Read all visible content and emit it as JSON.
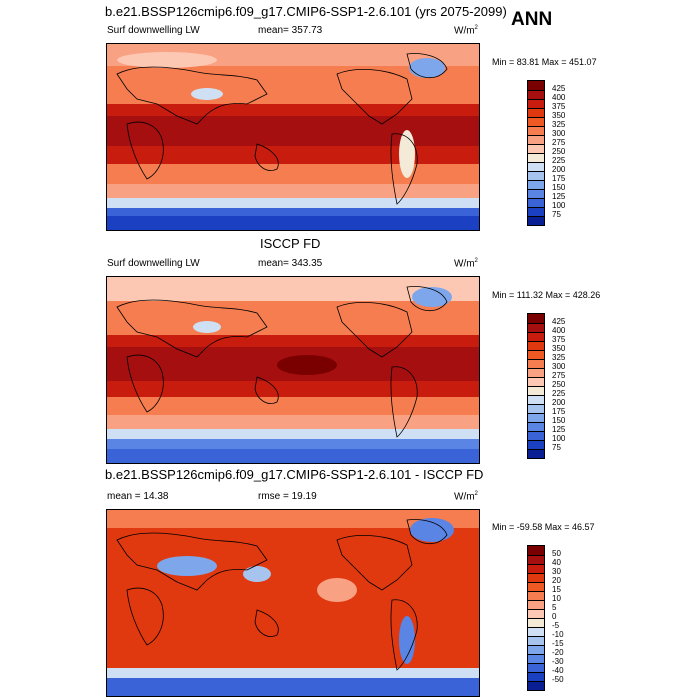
{
  "header": {
    "title_top": "b.e21.BSSP126cmip6.f09_g17.CMIP6-SSP1-2.6.101 (yrs 2075-2099)",
    "season": "ANN",
    "title_mid": "ISCCP FD",
    "title_bottom": "b.e21.BSSP126cmip6.f09_g17.CMIP6-SSP1-2.6.101 - ISCCP FD"
  },
  "panels": [
    {
      "left_label": "Surf downwelling LW",
      "center_label": "mean= 357.73",
      "unit": "W/m",
      "unit_sup": "2",
      "minmax": "Min =  83.81 Max = 451.07"
    },
    {
      "left_label": "Surf downwelling LW",
      "center_label": "mean= 343.35",
      "unit": "W/m",
      "unit_sup": "2",
      "minmax": "Min = 111.32 Max = 428.26"
    },
    {
      "left_label": "mean =  14.38",
      "center_label": "rmse =  19.19",
      "unit": "W/m",
      "unit_sup": "2",
      "minmax": "Min = -59.58 Max =  46.57"
    }
  ],
  "colorbars": {
    "absolute": {
      "labels": [
        "425",
        "400",
        "375",
        "350",
        "325",
        "300",
        "275",
        "250",
        "225",
        "200",
        "175",
        "150",
        "125",
        "100",
        "75"
      ],
      "colors": [
        "#7a0000",
        "#a50f0f",
        "#c81d0e",
        "#e0380f",
        "#ef5a24",
        "#f57d4f",
        "#f9a283",
        "#fcc7b3",
        "#f3ead8",
        "#cfe0f4",
        "#a6c4ee",
        "#7ea6ea",
        "#5a85e4",
        "#3a63d8",
        "#1c40c2",
        "#0a1f93"
      ]
    },
    "difference": {
      "labels": [
        "50",
        "40",
        "30",
        "20",
        "15",
        "10",
        "5",
        "0",
        "-5",
        "-10",
        "-15",
        "-20",
        "-30",
        "-40",
        "-50"
      ],
      "colors": [
        "#7a0000",
        "#a50f0f",
        "#c81d0e",
        "#e0380f",
        "#ef5a24",
        "#f57d4f",
        "#f9a283",
        "#fcc7b3",
        "#f3ead8",
        "#cfe0f4",
        "#a6c4ee",
        "#7ea6ea",
        "#5a85e4",
        "#3a63d8",
        "#1c40c2",
        "#0a1f93"
      ]
    }
  }
}
